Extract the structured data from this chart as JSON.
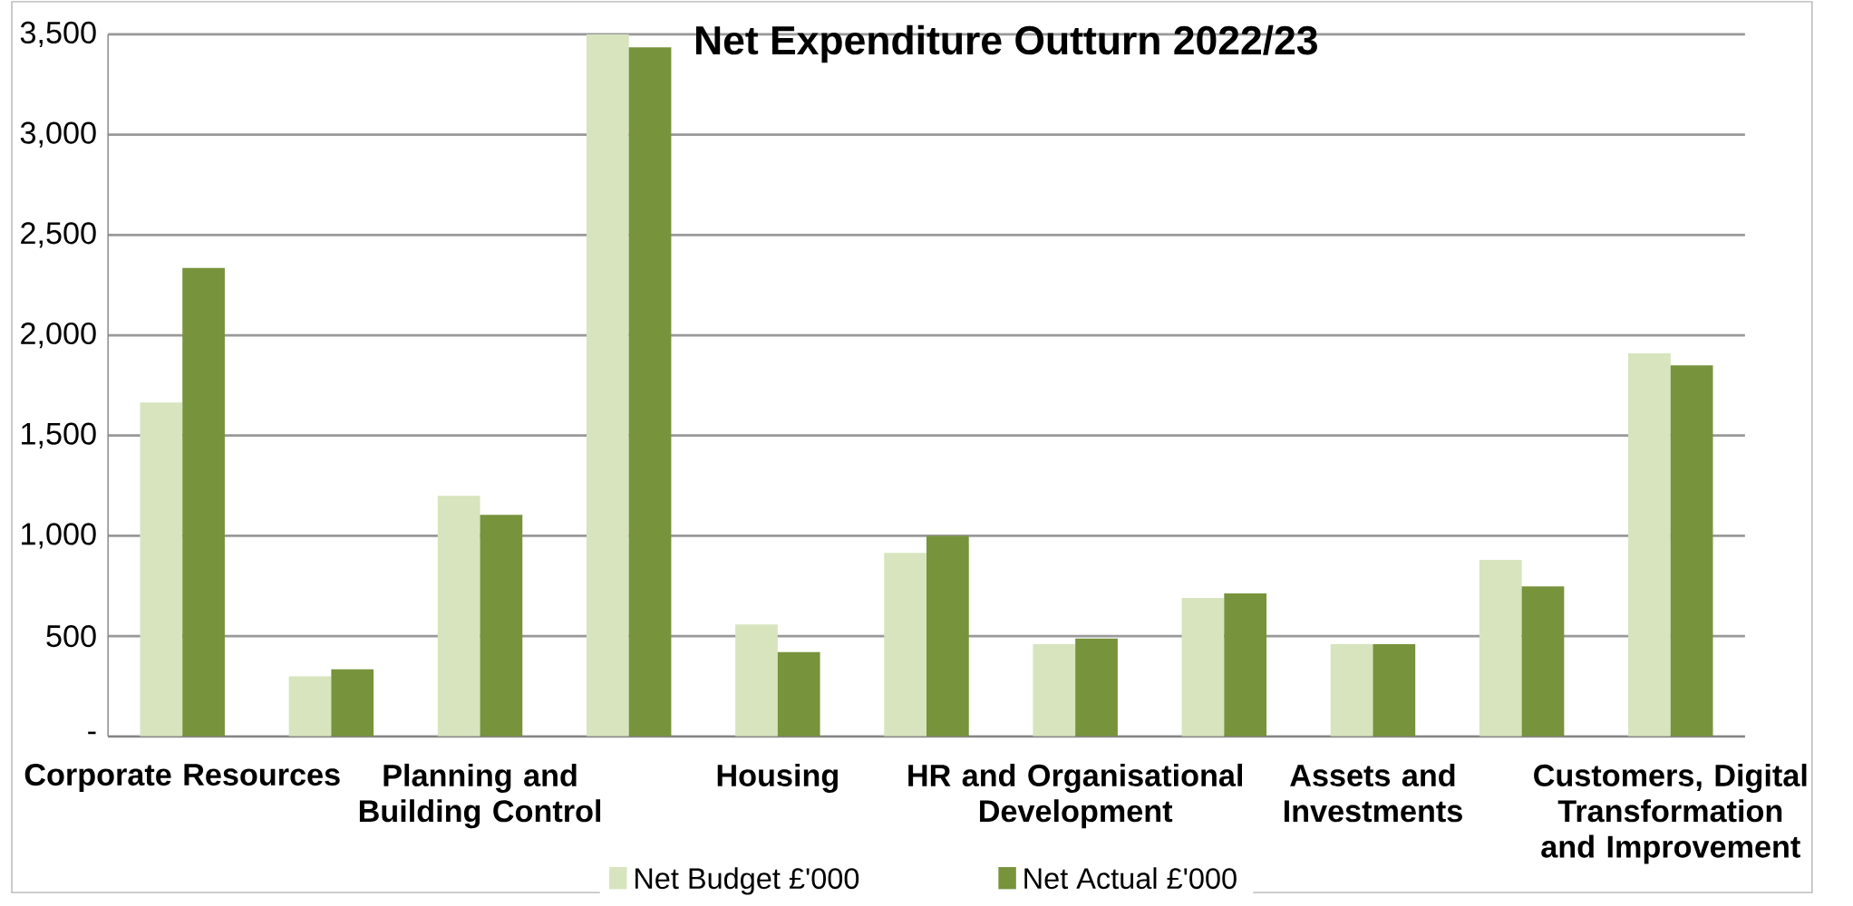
{
  "chart_data": {
    "type": "bar",
    "title": "Net Expenditure Outturn 2022/23",
    "categories": [
      "Corporate Resources",
      null,
      "Planning and Building Control",
      null,
      "Housing",
      null,
      "HR and Organisational Development",
      null,
      "Assets and Investments",
      null,
      "Customers, Digital Transformation and Improvement"
    ],
    "series": [
      {
        "name": "Net Budget £'000",
        "color": "#d7e4bd",
        "values": [
          1665,
          300,
          1200,
          3500,
          558,
          915,
          460,
          690,
          460,
          880,
          1910
        ]
      },
      {
        "name": "Net Actual £'000",
        "color": "#77933c",
        "values": [
          2335,
          335,
          1105,
          3435,
          420,
          1000,
          488,
          713,
          460,
          748,
          1850
        ]
      }
    ],
    "ylim": [
      0,
      3500
    ],
    "yticks": [
      {
        "value": 0,
        "label": "-"
      },
      500,
      {
        "value": 1000,
        "label": "1,000"
      },
      {
        "value": 1500,
        "label": "1,500"
      },
      {
        "value": 2000,
        "label": "2,000"
      },
      {
        "value": 2500,
        "label": "2,500"
      },
      {
        "value": 3000,
        "label": "3,000"
      },
      {
        "value": 3500,
        "label": "3,500"
      }
    ],
    "grid": "y",
    "legend": "bottom"
  }
}
